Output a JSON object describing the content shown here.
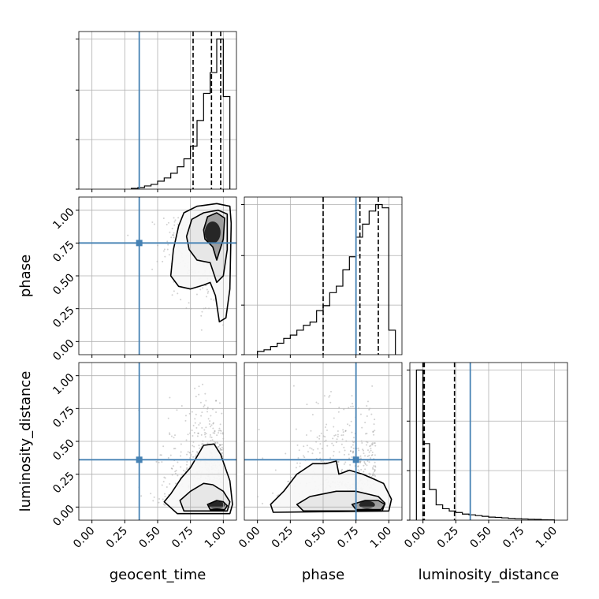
{
  "chart_data": {
    "type": "corner",
    "parameters": [
      "geocent_time",
      "phase",
      "luminosity_distance"
    ],
    "axis_labels": {
      "geocent_time": "geocent_time",
      "phase": "phase",
      "luminosity_distance": "luminosity_distance"
    },
    "tick_values": [
      0.0,
      0.25,
      0.5,
      0.75,
      1.0
    ],
    "tick_labels": [
      "0.00",
      "0.25",
      "0.50",
      "0.75",
      "1.00"
    ],
    "axis_ranges": {
      "geocent_time": [
        -0.1,
        1.1
      ],
      "phase": [
        -0.1,
        1.1
      ],
      "luminosity_distance": [
        -0.1,
        1.1
      ]
    },
    "truths": {
      "geocent_time": 0.36,
      "phase": 0.75,
      "luminosity_distance": 0.36
    },
    "truth_color": "#4682b4",
    "grid": true,
    "histograms": {
      "geocent_time": {
        "bin_edges": [
          0.3,
          0.35,
          0.4,
          0.45,
          0.5,
          0.55,
          0.6,
          0.65,
          0.7,
          0.75,
          0.8,
          0.85,
          0.9,
          0.95,
          1.0,
          1.05
        ],
        "counts": [
          0.005,
          0.01,
          0.02,
          0.03,
          0.05,
          0.07,
          0.1,
          0.14,
          0.19,
          0.27,
          0.43,
          0.6,
          0.73,
          0.94,
          0.58
        ],
        "quantiles": [
          0.77,
          0.91,
          0.98
        ]
      },
      "phase": {
        "bin_edges": [
          0.0,
          0.05,
          0.1,
          0.15,
          0.2,
          0.25,
          0.3,
          0.35,
          0.4,
          0.45,
          0.5,
          0.55,
          0.6,
          0.65,
          0.7,
          0.75,
          0.8,
          0.85,
          0.9,
          0.95,
          1.0,
          1.05
        ],
        "counts": [
          0.02,
          0.03,
          0.05,
          0.07,
          0.1,
          0.12,
          0.15,
          0.18,
          0.2,
          0.27,
          0.3,
          0.38,
          0.42,
          0.52,
          0.6,
          0.72,
          0.8,
          0.88,
          0.92,
          0.9,
          0.15
        ],
        "quantiles": [
          0.5,
          0.78,
          0.92
        ]
      },
      "luminosity_distance": {
        "bin_edges": [
          -0.05,
          0.0,
          0.05,
          0.1,
          0.15,
          0.2,
          0.25,
          0.3,
          0.35,
          0.4,
          0.45,
          0.5,
          0.55,
          0.6,
          0.65,
          0.7,
          0.75,
          0.8,
          0.85,
          0.9,
          0.95,
          1.0
        ],
        "counts": [
          0.98,
          0.5,
          0.2,
          0.1,
          0.075,
          0.06,
          0.05,
          0.04,
          0.035,
          0.03,
          0.025,
          0.02,
          0.018,
          0.015,
          0.012,
          0.01,
          0.008,
          0.006,
          0.005,
          0.003,
          0.002
        ],
        "quantiles": [
          0.0,
          0.01,
          0.24
        ]
      }
    },
    "contours_2d": [
      {
        "x": "geocent_time",
        "y": "phase",
        "levels": [
          [
            [
              0.6,
              0.5
            ],
            [
              0.62,
              0.7
            ],
            [
              0.66,
              0.88
            ],
            [
              0.7,
              0.98
            ],
            [
              0.8,
              1.03
            ],
            [
              0.95,
              1.05
            ],
            [
              1.05,
              1.03
            ],
            [
              1.06,
              0.9
            ],
            [
              1.05,
              0.4
            ],
            [
              1.02,
              0.18
            ],
            [
              0.97,
              0.15
            ],
            [
              0.94,
              0.35
            ],
            [
              0.9,
              0.45
            ],
            [
              0.85,
              0.43
            ],
            [
              0.75,
              0.4
            ],
            [
              0.66,
              0.42
            ],
            [
              0.6,
              0.5
            ]
          ],
          [
            [
              0.72,
              0.8
            ],
            [
              0.76,
              0.93
            ],
            [
              0.85,
              0.98
            ],
            [
              0.96,
              1.0
            ],
            [
              1.03,
              0.97
            ],
            [
              1.03,
              0.7
            ],
            [
              1.0,
              0.5
            ],
            [
              0.95,
              0.45
            ],
            [
              0.9,
              0.6
            ],
            [
              0.8,
              0.62
            ],
            [
              0.74,
              0.7
            ],
            [
              0.72,
              0.8
            ]
          ],
          [
            [
              0.85,
              0.85
            ],
            [
              0.88,
              0.95
            ],
            [
              0.95,
              0.98
            ],
            [
              1.01,
              0.94
            ],
            [
              1.0,
              0.78
            ],
            [
              0.95,
              0.62
            ],
            [
              0.92,
              0.72
            ],
            [
              0.86,
              0.78
            ],
            [
              0.85,
              0.85
            ]
          ]
        ]
      },
      {
        "x": "geocent_time",
        "y": "luminosity_distance",
        "levels": [
          [
            [
              0.55,
              0.04
            ],
            [
              0.6,
              0.1
            ],
            [
              0.68,
              0.22
            ],
            [
              0.75,
              0.3
            ],
            [
              0.85,
              0.47
            ],
            [
              0.93,
              0.48
            ],
            [
              0.98,
              0.4
            ],
            [
              1.05,
              0.2
            ],
            [
              1.07,
              0.02
            ],
            [
              1.05,
              -0.05
            ],
            [
              0.65,
              -0.05
            ],
            [
              0.55,
              0.04
            ]
          ],
          [
            [
              0.67,
              0.05
            ],
            [
              0.75,
              0.12
            ],
            [
              0.85,
              0.18
            ],
            [
              0.92,
              0.17
            ],
            [
              1.0,
              0.12
            ],
            [
              1.05,
              0.04
            ],
            [
              1.03,
              -0.03
            ],
            [
              0.7,
              -0.03
            ],
            [
              0.67,
              0.05
            ]
          ],
          [
            [
              0.88,
              0.02
            ],
            [
              0.95,
              0.05
            ],
            [
              1.0,
              0.04
            ],
            [
              1.03,
              0.01
            ],
            [
              1.01,
              -0.02
            ],
            [
              0.9,
              -0.02
            ],
            [
              0.88,
              0.02
            ]
          ]
        ]
      },
      {
        "x": "phase",
        "y": "luminosity_distance",
        "levels": [
          [
            [
              0.1,
              0.02
            ],
            [
              0.2,
              0.12
            ],
            [
              0.3,
              0.25
            ],
            [
              0.42,
              0.33
            ],
            [
              0.52,
              0.33
            ],
            [
              0.6,
              0.35
            ],
            [
              0.62,
              0.25
            ],
            [
              0.7,
              0.28
            ],
            [
              0.8,
              0.25
            ],
            [
              0.87,
              0.22
            ],
            [
              0.96,
              0.18
            ],
            [
              1.02,
              0.06
            ],
            [
              1.0,
              -0.03
            ],
            [
              0.12,
              -0.04
            ],
            [
              0.1,
              0.02
            ]
          ],
          [
            [
              0.3,
              0.02
            ],
            [
              0.4,
              0.08
            ],
            [
              0.5,
              0.1
            ],
            [
              0.6,
              0.12
            ],
            [
              0.75,
              0.12
            ],
            [
              0.92,
              0.08
            ],
            [
              0.97,
              0.03
            ],
            [
              0.95,
              -0.03
            ],
            [
              0.35,
              -0.03
            ],
            [
              0.3,
              0.02
            ]
          ],
          [
            [
              0.72,
              0.02
            ],
            [
              0.82,
              0.05
            ],
            [
              0.92,
              0.05
            ],
            [
              0.97,
              0.02
            ],
            [
              0.94,
              -0.02
            ],
            [
              0.75,
              -0.02
            ],
            [
              0.72,
              0.02
            ]
          ]
        ]
      }
    ]
  }
}
